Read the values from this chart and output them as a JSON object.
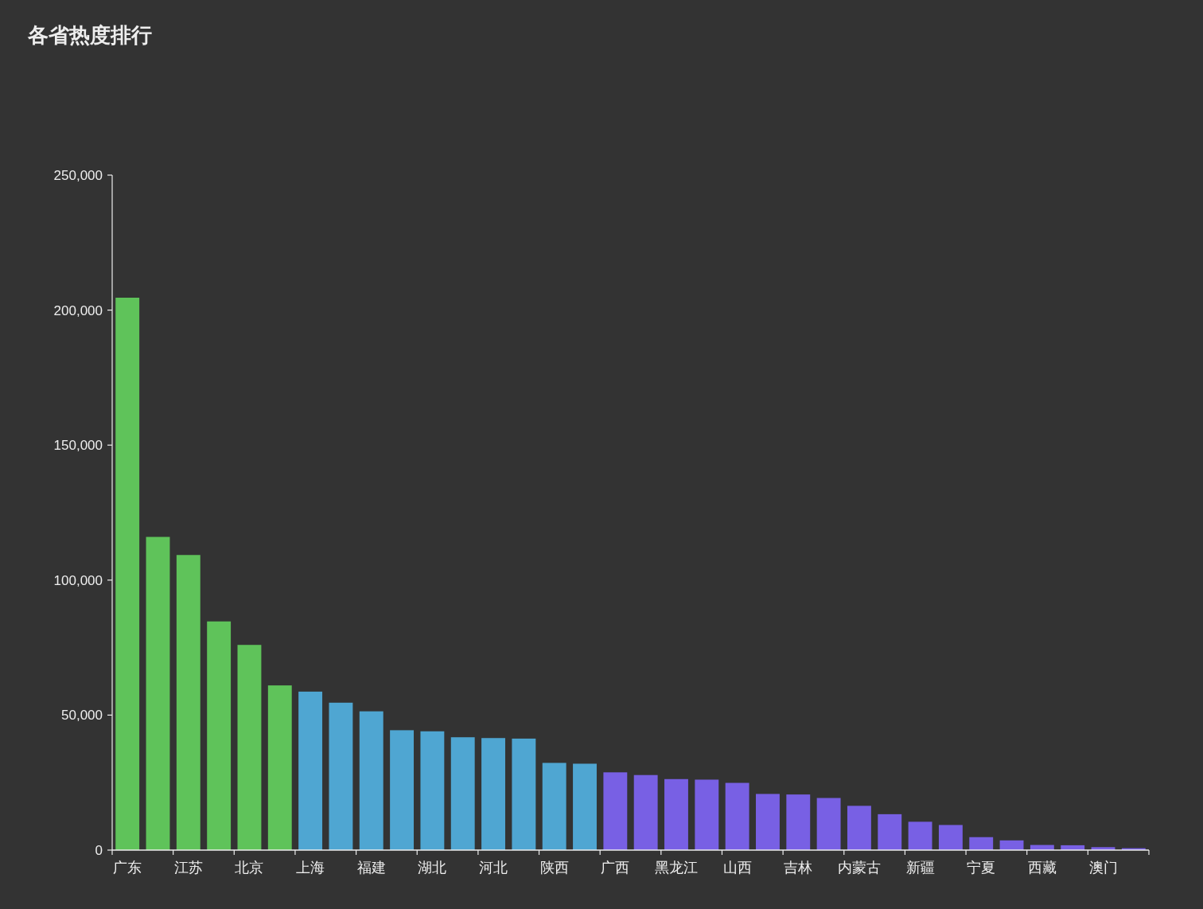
{
  "chart_data": {
    "type": "bar",
    "title": "各省热度排行",
    "categories": [
      "广东",
      null,
      "江苏",
      null,
      "北京",
      null,
      "上海",
      null,
      "福建",
      null,
      "湖北",
      null,
      "河北",
      null,
      "陕西",
      null,
      "广西",
      null,
      "黑龙江",
      null,
      "山西",
      null,
      "吉林",
      null,
      "内蒙古",
      null,
      "新疆",
      null,
      "宁夏",
      null,
      "西藏",
      null,
      "澳门",
      null
    ],
    "values": [
      204600,
      116000,
      109300,
      84700,
      76000,
      61000,
      58700,
      54600,
      51400,
      44400,
      44000,
      41800,
      41500,
      41300,
      32300,
      32000,
      28800,
      27800,
      26300,
      26100,
      24900,
      20800,
      20600,
      19300,
      16400,
      13300,
      10500,
      9300,
      4800,
      3600,
      1900,
      1800,
      1100,
      700
    ],
    "colors": [
      "#5fc35a",
      "#5fc35a",
      "#5fc35a",
      "#5fc35a",
      "#5fc35a",
      "#5fc35a",
      "#4fa6d2",
      "#4fa6d2",
      "#4fa6d2",
      "#4fa6d2",
      "#4fa6d2",
      "#4fa6d2",
      "#4fa6d2",
      "#4fa6d2",
      "#4fa6d2",
      "#4fa6d2",
      "#7860e4",
      "#7860e4",
      "#7860e4",
      "#7860e4",
      "#7860e4",
      "#7860e4",
      "#7860e4",
      "#7860e4",
      "#7860e4",
      "#7860e4",
      "#7860e4",
      "#7860e4",
      "#7860e4",
      "#7860e4",
      "#7860e4",
      "#7860e4",
      "#7860e4",
      "#7860e4"
    ],
    "ylim": [
      0,
      250000
    ],
    "yticks": [
      0,
      {
        "value": 50000,
        "label": "50,000"
      },
      {
        "value": 100000,
        "label": "100,000"
      },
      {
        "value": 150000,
        "label": "150,000"
      },
      {
        "value": 200000,
        "label": "200,000"
      },
      {
        "value": 250000,
        "label": "250,000"
      }
    ]
  }
}
